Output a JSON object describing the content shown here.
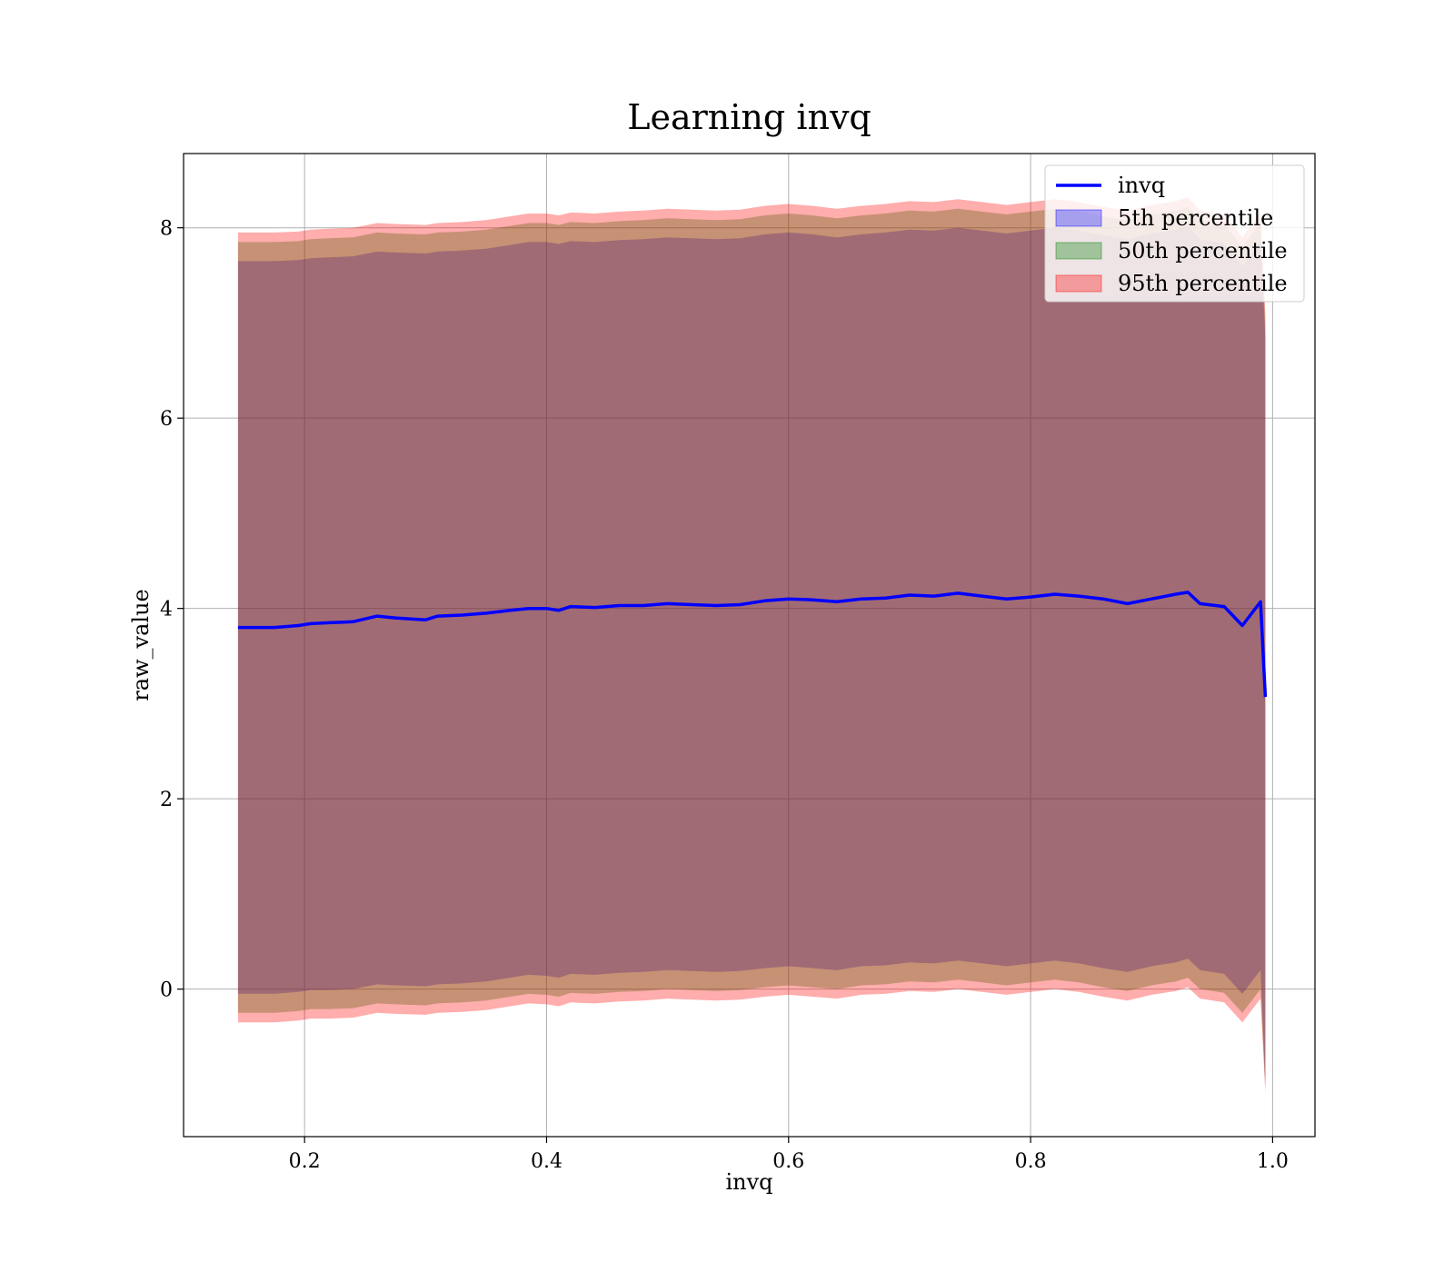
{
  "chart_data": {
    "type": "line",
    "title": "Learning invq",
    "xlabel": "invq",
    "ylabel": "raw_value",
    "xlim": [
      0.1,
      1.035
    ],
    "ylim": [
      -1.55,
      8.78
    ],
    "xticks": [
      0.2,
      0.4,
      0.6,
      0.8,
      1.0
    ],
    "xtick_labels": [
      "0.2",
      "0.4",
      "0.6",
      "0.8",
      "1.0"
    ],
    "yticks": [
      0,
      2,
      4,
      6,
      8
    ],
    "ytick_labels": [
      "0",
      "2",
      "4",
      "6",
      "8"
    ],
    "grid": true,
    "legend_position": "top-right",
    "colors": {
      "line": "#0000ff",
      "p5": "#0000ff",
      "p50": "#008000",
      "p95": "#ff0000",
      "grid": "#b0b0b0"
    },
    "series": [
      {
        "name": "invq",
        "kind": "line",
        "x": [
          0.145,
          0.175,
          0.195,
          0.205,
          0.22,
          0.24,
          0.26,
          0.275,
          0.3,
          0.31,
          0.33,
          0.35,
          0.37,
          0.385,
          0.4,
          0.41,
          0.42,
          0.44,
          0.46,
          0.48,
          0.5,
          0.52,
          0.54,
          0.56,
          0.58,
          0.6,
          0.62,
          0.64,
          0.66,
          0.68,
          0.7,
          0.72,
          0.74,
          0.76,
          0.78,
          0.8,
          0.82,
          0.84,
          0.86,
          0.88,
          0.9,
          0.92,
          0.93,
          0.94,
          0.96,
          0.975,
          0.99,
          0.994
        ],
        "y": [
          3.8,
          3.8,
          3.82,
          3.84,
          3.85,
          3.86,
          3.92,
          3.9,
          3.88,
          3.92,
          3.93,
          3.95,
          3.98,
          4.0,
          4.0,
          3.98,
          4.02,
          4.01,
          4.03,
          4.03,
          4.05,
          4.04,
          4.03,
          4.04,
          4.08,
          4.1,
          4.09,
          4.07,
          4.1,
          4.11,
          4.14,
          4.13,
          4.16,
          4.13,
          4.1,
          4.12,
          4.15,
          4.13,
          4.1,
          4.05,
          4.1,
          4.15,
          4.17,
          4.05,
          4.02,
          3.82,
          4.07,
          3.07
        ]
      },
      {
        "name": "5th percentile",
        "kind": "band",
        "x": [
          0.145,
          0.175,
          0.195,
          0.205,
          0.22,
          0.24,
          0.26,
          0.275,
          0.3,
          0.31,
          0.33,
          0.35,
          0.37,
          0.385,
          0.4,
          0.41,
          0.42,
          0.44,
          0.46,
          0.48,
          0.5,
          0.52,
          0.54,
          0.56,
          0.58,
          0.6,
          0.62,
          0.64,
          0.66,
          0.68,
          0.7,
          0.72,
          0.74,
          0.76,
          0.78,
          0.8,
          0.82,
          0.84,
          0.86,
          0.88,
          0.9,
          0.92,
          0.93,
          0.94,
          0.96,
          0.975,
          0.99,
          0.994
        ],
        "lower": [
          -0.05,
          -0.05,
          -0.03,
          -0.01,
          -0.01,
          0.0,
          0.05,
          0.04,
          0.03,
          0.05,
          0.06,
          0.08,
          0.12,
          0.15,
          0.14,
          0.12,
          0.16,
          0.15,
          0.17,
          0.18,
          0.2,
          0.19,
          0.18,
          0.19,
          0.22,
          0.24,
          0.22,
          0.2,
          0.24,
          0.25,
          0.28,
          0.27,
          0.3,
          0.27,
          0.24,
          0.27,
          0.3,
          0.27,
          0.22,
          0.18,
          0.24,
          0.28,
          0.32,
          0.2,
          0.16,
          -0.05,
          0.2,
          -1.0
        ],
        "upper": [
          7.65,
          7.65,
          7.66,
          7.68,
          7.69,
          7.7,
          7.75,
          7.74,
          7.73,
          7.75,
          7.76,
          7.78,
          7.82,
          7.85,
          7.85,
          7.83,
          7.86,
          7.85,
          7.87,
          7.88,
          7.9,
          7.89,
          7.88,
          7.89,
          7.93,
          7.95,
          7.93,
          7.9,
          7.93,
          7.95,
          7.98,
          7.97,
          8.0,
          7.97,
          7.94,
          7.97,
          8.0,
          7.97,
          7.92,
          7.88,
          7.94,
          7.98,
          8.02,
          7.88,
          7.84,
          7.6,
          7.86,
          6.85
        ]
      },
      {
        "name": "50th percentile",
        "kind": "band",
        "x": [
          0.145,
          0.175,
          0.195,
          0.205,
          0.22,
          0.24,
          0.26,
          0.275,
          0.3,
          0.31,
          0.33,
          0.35,
          0.37,
          0.385,
          0.4,
          0.41,
          0.42,
          0.44,
          0.46,
          0.48,
          0.5,
          0.52,
          0.54,
          0.56,
          0.58,
          0.6,
          0.62,
          0.64,
          0.66,
          0.68,
          0.7,
          0.72,
          0.74,
          0.76,
          0.78,
          0.8,
          0.82,
          0.84,
          0.86,
          0.88,
          0.9,
          0.92,
          0.93,
          0.94,
          0.96,
          0.975,
          0.99,
          0.994
        ],
        "lower": [
          -0.25,
          -0.25,
          -0.23,
          -0.21,
          -0.21,
          -0.2,
          -0.15,
          -0.16,
          -0.17,
          -0.15,
          -0.14,
          -0.12,
          -0.08,
          -0.05,
          -0.06,
          -0.08,
          -0.04,
          -0.05,
          -0.03,
          -0.02,
          0.0,
          -0.01,
          -0.02,
          -0.01,
          0.02,
          0.04,
          0.02,
          0.0,
          0.04,
          0.05,
          0.08,
          0.07,
          0.1,
          0.07,
          0.04,
          0.07,
          0.1,
          0.07,
          0.02,
          -0.02,
          0.04,
          0.08,
          0.12,
          0.0,
          -0.04,
          -0.25,
          0.0,
          -1.05
        ],
        "upper": [
          7.85,
          7.85,
          7.86,
          7.88,
          7.89,
          7.9,
          7.95,
          7.94,
          7.93,
          7.95,
          7.96,
          7.98,
          8.02,
          8.05,
          8.05,
          8.03,
          8.06,
          8.05,
          8.07,
          8.08,
          8.1,
          8.09,
          8.08,
          8.09,
          8.13,
          8.15,
          8.13,
          8.1,
          8.13,
          8.15,
          8.18,
          8.17,
          8.2,
          8.17,
          8.14,
          8.17,
          8.2,
          8.17,
          8.12,
          8.08,
          8.14,
          8.18,
          8.22,
          8.08,
          8.04,
          7.8,
          8.06,
          7.0
        ]
      },
      {
        "name": "95th percentile",
        "kind": "band",
        "x": [
          0.145,
          0.175,
          0.195,
          0.205,
          0.22,
          0.24,
          0.26,
          0.275,
          0.3,
          0.31,
          0.33,
          0.35,
          0.37,
          0.385,
          0.4,
          0.41,
          0.42,
          0.44,
          0.46,
          0.48,
          0.5,
          0.52,
          0.54,
          0.56,
          0.58,
          0.6,
          0.62,
          0.64,
          0.66,
          0.68,
          0.7,
          0.72,
          0.74,
          0.76,
          0.78,
          0.8,
          0.82,
          0.84,
          0.86,
          0.88,
          0.9,
          0.92,
          0.93,
          0.94,
          0.96,
          0.975,
          0.99,
          0.994
        ],
        "lower": [
          -0.35,
          -0.35,
          -0.33,
          -0.31,
          -0.31,
          -0.3,
          -0.25,
          -0.26,
          -0.27,
          -0.25,
          -0.24,
          -0.22,
          -0.18,
          -0.15,
          -0.16,
          -0.18,
          -0.14,
          -0.15,
          -0.13,
          -0.12,
          -0.1,
          -0.11,
          -0.12,
          -0.11,
          -0.08,
          -0.06,
          -0.08,
          -0.1,
          -0.06,
          -0.05,
          -0.02,
          -0.03,
          0.0,
          -0.03,
          -0.06,
          -0.03,
          0.0,
          -0.03,
          -0.08,
          -0.12,
          -0.06,
          -0.02,
          0.02,
          -0.1,
          -0.14,
          -0.35,
          -0.1,
          -1.1
        ],
        "upper": [
          7.95,
          7.95,
          7.96,
          7.98,
          7.99,
          8.0,
          8.05,
          8.04,
          8.03,
          8.05,
          8.06,
          8.08,
          8.12,
          8.15,
          8.15,
          8.13,
          8.16,
          8.15,
          8.17,
          8.18,
          8.2,
          8.19,
          8.18,
          8.19,
          8.23,
          8.25,
          8.23,
          8.2,
          8.23,
          8.25,
          8.28,
          8.27,
          8.3,
          8.27,
          8.24,
          8.27,
          8.3,
          8.27,
          8.22,
          8.18,
          8.24,
          8.28,
          8.32,
          8.18,
          8.14,
          7.9,
          8.16,
          7.1
        ]
      }
    ]
  }
}
